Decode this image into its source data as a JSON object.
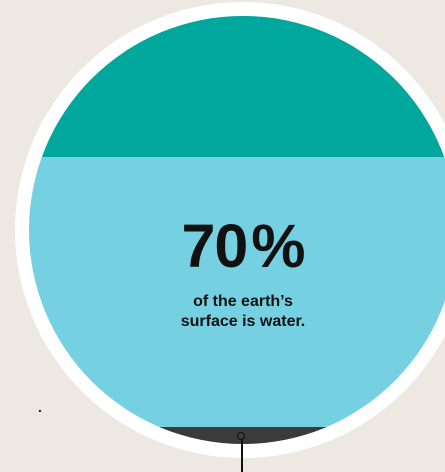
{
  "side_marks": [
    ",",
    "."
  ],
  "stat": {
    "value": "70",
    "unit": "%",
    "caption_line1": "of the earth’s",
    "caption_line2": "surface is water."
  },
  "colors": {
    "background": "#ede9e2",
    "ring": "#ffffff",
    "water": "#75d1e2",
    "top_band": "#00a79c",
    "bottom_band": "#3b3b3b",
    "text": "#111111"
  }
}
